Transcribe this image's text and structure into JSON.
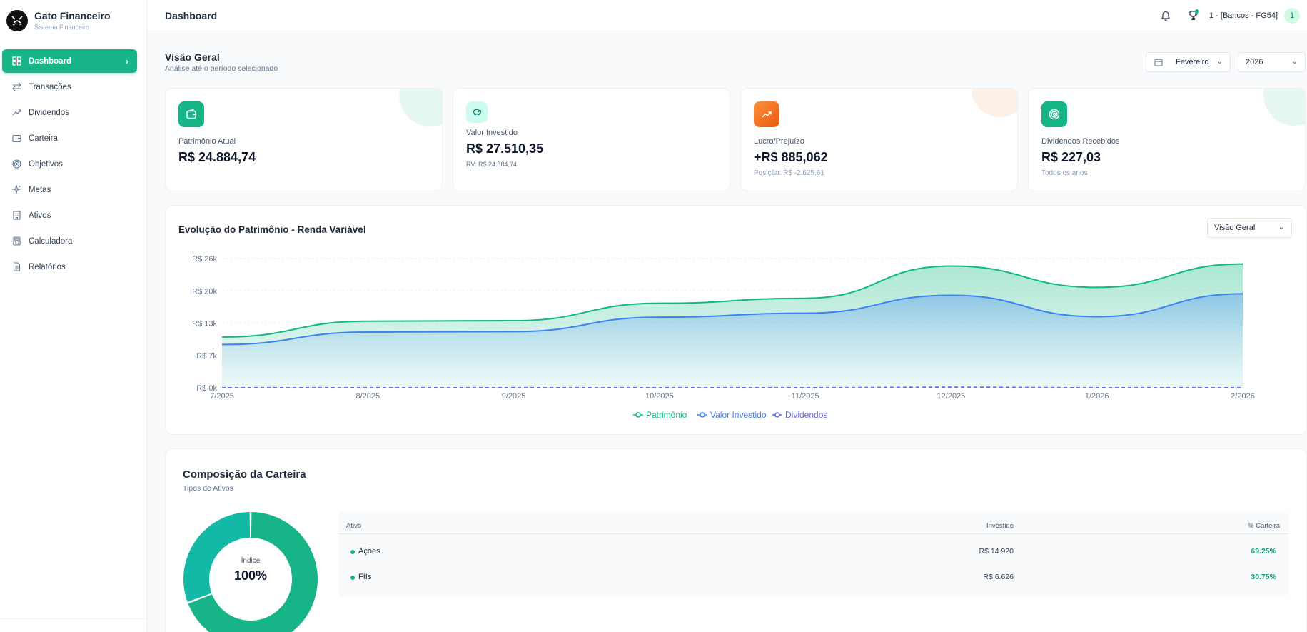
{
  "app": {
    "name": "Gato Financeiro",
    "subtitle": "Sistema Financeiro"
  },
  "sidebar": {
    "items": [
      {
        "label": "Dashboard",
        "icon": "grid-icon",
        "active": true
      },
      {
        "label": "Transações",
        "icon": "arrows-icon"
      },
      {
        "label": "Dividendos",
        "icon": "trend-icon"
      },
      {
        "label": "Carteira",
        "icon": "wallet-icon"
      },
      {
        "label": "Objetivos",
        "icon": "target-icon"
      },
      {
        "label": "Metas",
        "icon": "sparkle-icon"
      },
      {
        "label": "Ativos",
        "icon": "building-icon"
      },
      {
        "label": "Calculadora",
        "icon": "calculator-icon"
      },
      {
        "label": "Relatórios",
        "icon": "file-icon"
      }
    ]
  },
  "header": {
    "title": "Dashboard",
    "user_label": "1 - [Bancos - FG54]",
    "user_initial": "1"
  },
  "overview": {
    "title": "Visão Geral",
    "subtitle": "Análise até o período selecionado",
    "month": "Fevereiro",
    "year": "2026"
  },
  "cards": [
    {
      "label": "Patrimônio Atual",
      "value": "R$ 24.884,74",
      "sub": "",
      "icon": "wallet-icon",
      "color": "#17b487"
    },
    {
      "label": "Valor Investido",
      "value": "R$ 27.510,35",
      "sub": "RV: R$ 24.884,74",
      "icon": "piggy-bank-icon",
      "color": "#ccfbef"
    },
    {
      "label": "Lucro/Prejuízo",
      "value": "+R$ 885,062",
      "sub": "Posição: R$ -2.625,61",
      "icon": "trending-up-icon",
      "color": "#f97316"
    },
    {
      "label": "Dividendos Recebidos",
      "value": "R$ 227,03",
      "sub": "Todos os anos",
      "icon": "target-icon",
      "color": "#17b487"
    }
  ],
  "chart": {
    "title": "Evolução do Patrimônio - Renda Variável",
    "view_select": "Visão Geral"
  },
  "chart_data": {
    "type": "area",
    "x": [
      "7/2025",
      "8/2025",
      "9/2025",
      "10/2025",
      "11/2025",
      "12/2025",
      "1/2026",
      "2/2026"
    ],
    "y_ticks": [
      "R$ 26k",
      "R$ 20k",
      "R$ 13k",
      "R$ 7k",
      "R$ 0k"
    ],
    "ylim": [
      0,
      26000
    ],
    "series": [
      {
        "name": "Patrimônio",
        "color": "#10b981",
        "values": [
          10200,
          13400,
          13500,
          17000,
          18000,
          24500,
          20200,
          24900
        ]
      },
      {
        "name": "Valor Investido",
        "color": "#3b82f6",
        "values": [
          8700,
          11200,
          11300,
          14200,
          15000,
          18600,
          14300,
          18900
        ]
      },
      {
        "name": "Dividendos",
        "color": "#6366f1",
        "dashed": true,
        "values": [
          0,
          0,
          0,
          0,
          0,
          100,
          0,
          0
        ]
      }
    ],
    "grid": true,
    "legend": "bottom-center"
  },
  "composition": {
    "title": "Composição da Carteira",
    "subtitle": "Tipos de Ativos",
    "center_label": "Índice",
    "center_value": "100%",
    "headers": {
      "asset": "Ativo",
      "invested": "Investido",
      "pct": "% Carteira"
    },
    "rows": [
      {
        "name": "Ações",
        "invested": "R$ 14.920",
        "pct": "69.25%",
        "share": 0.6925,
        "color": "#17b487"
      },
      {
        "name": "FIIs",
        "invested": "R$ 6.626",
        "pct": "30.75%",
        "share": 0.3075,
        "color": "#14b8a6"
      }
    ]
  }
}
